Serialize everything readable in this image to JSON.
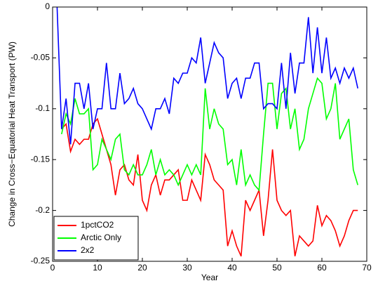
{
  "chart_data": {
    "type": "line",
    "xlabel": "Year",
    "ylabel": "Change in Cross−Equatorial Heat Transport (PW)",
    "x": [
      1,
      2,
      3,
      4,
      5,
      6,
      7,
      8,
      9,
      10,
      11,
      12,
      13,
      14,
      15,
      16,
      17,
      18,
      19,
      20,
      21,
      22,
      23,
      24,
      25,
      26,
      27,
      28,
      29,
      30,
      31,
      32,
      33,
      34,
      35,
      36,
      37,
      38,
      39,
      40,
      41,
      42,
      43,
      44,
      45,
      46,
      47,
      48,
      49,
      50,
      51,
      52,
      53,
      54,
      55,
      56,
      57,
      58,
      59,
      60,
      61,
      62,
      63,
      64,
      65,
      66,
      67,
      68
    ],
    "series": [
      {
        "name": "1pctCO2",
        "color": "#ff0000",
        "values": [
          null,
          -0.12,
          -0.115,
          -0.142,
          -0.13,
          -0.135,
          -0.13,
          -0.13,
          -0.115,
          -0.11,
          -0.125,
          -0.14,
          -0.155,
          -0.185,
          -0.16,
          -0.155,
          -0.17,
          -0.175,
          -0.145,
          -0.19,
          -0.2,
          -0.175,
          -0.165,
          -0.185,
          -0.17,
          -0.17,
          -0.165,
          -0.16,
          -0.19,
          -0.19,
          -0.17,
          -0.18,
          -0.19,
          -0.145,
          -0.155,
          -0.17,
          -0.175,
          -0.18,
          -0.235,
          -0.22,
          -0.235,
          -0.245,
          -0.19,
          -0.2,
          -0.19,
          -0.18,
          -0.225,
          -0.19,
          -0.14,
          -0.19,
          -0.2,
          -0.205,
          -0.2,
          -0.245,
          -0.225,
          -0.23,
          -0.235,
          -0.23,
          -0.195,
          -0.215,
          -0.205,
          -0.21,
          -0.22,
          -0.235,
          -0.225,
          -0.21,
          -0.2,
          -0.2
        ]
      },
      {
        "name": "Arctic Only",
        "color": "#00ff00",
        "values": [
          null,
          -0.125,
          -0.105,
          -0.115,
          -0.09,
          -0.105,
          -0.105,
          -0.1,
          -0.16,
          -0.155,
          -0.13,
          -0.14,
          -0.15,
          -0.13,
          -0.125,
          -0.16,
          -0.165,
          -0.155,
          -0.165,
          -0.165,
          -0.155,
          -0.14,
          -0.165,
          -0.15,
          -0.165,
          -0.16,
          -0.165,
          -0.175,
          -0.165,
          -0.155,
          -0.165,
          -0.155,
          -0.165,
          -0.08,
          -0.12,
          -0.1,
          -0.115,
          -0.12,
          -0.155,
          -0.15,
          -0.175,
          -0.14,
          -0.175,
          -0.165,
          -0.175,
          -0.18,
          -0.125,
          -0.075,
          -0.075,
          -0.12,
          -0.085,
          -0.08,
          -0.12,
          -0.1,
          -0.14,
          -0.13,
          -0.1,
          -0.085,
          -0.07,
          -0.075,
          -0.11,
          -0.1,
          -0.075,
          -0.13,
          -0.12,
          -0.11,
          -0.16,
          -0.175
        ]
      },
      {
        "name": "2x2",
        "color": "#0000ff",
        "values": [
          0,
          -0.12,
          -0.09,
          -0.135,
          -0.075,
          -0.075,
          -0.1,
          -0.075,
          -0.12,
          -0.1,
          -0.1,
          -0.055,
          -0.1,
          -0.1,
          -0.065,
          -0.095,
          -0.09,
          -0.08,
          -0.095,
          -0.1,
          -0.11,
          -0.12,
          -0.1,
          -0.1,
          -0.09,
          -0.105,
          -0.07,
          -0.075,
          -0.065,
          -0.065,
          -0.05,
          -0.055,
          -0.03,
          -0.075,
          -0.055,
          -0.035,
          -0.045,
          -0.05,
          -0.09,
          -0.075,
          -0.07,
          -0.09,
          -0.07,
          -0.07,
          -0.055,
          -0.055,
          -0.1,
          -0.095,
          -0.095,
          -0.1,
          -0.055,
          -0.1,
          -0.045,
          -0.085,
          -0.055,
          -0.055,
          -0.01,
          -0.065,
          -0.02,
          -0.065,
          -0.03,
          -0.07,
          -0.06,
          -0.075,
          -0.06,
          -0.07,
          -0.06,
          -0.08
        ]
      }
    ],
    "xlim": [
      0,
      70
    ],
    "xticks": [
      0,
      10,
      20,
      30,
      40,
      50,
      60,
      70
    ],
    "ylim": [
      -0.25,
      0
    ],
    "yticks": [
      -0.25,
      -0.2,
      -0.15,
      -0.1,
      -0.05,
      0
    ],
    "legend": "lower left"
  }
}
